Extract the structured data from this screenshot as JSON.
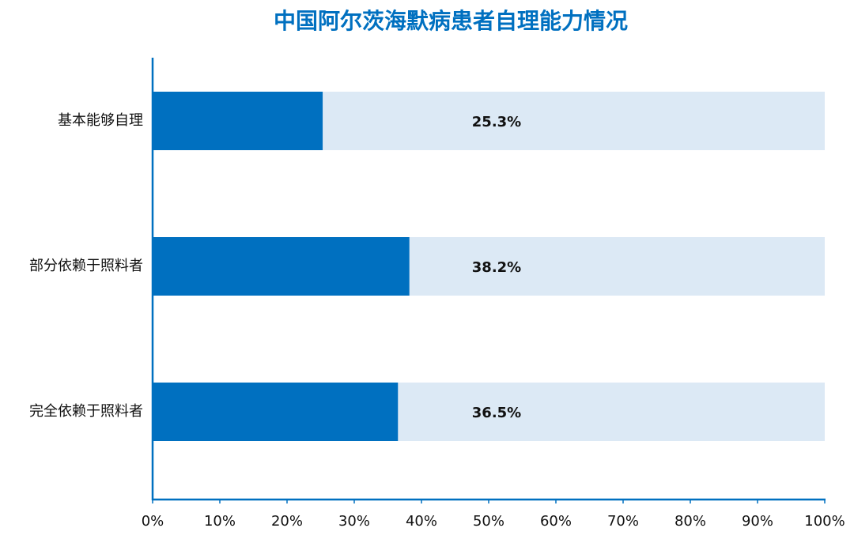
{
  "chart_data": {
    "type": "bar",
    "orientation": "horizontal",
    "title": "中国阿尔茨海默病患者自理能力情况",
    "categories": [
      "基本能够自理",
      "部分依赖于照料者",
      "完全依赖于照料者"
    ],
    "values": [
      25.3,
      38.2,
      36.5
    ],
    "value_labels": [
      "25.3%",
      "38.2%",
      "36.5%"
    ],
    "color": "#0070c0",
    "track_color": "#dce9f5",
    "xlim": [
      0,
      100
    ],
    "xticks": [
      {
        "value": 0,
        "label": "0%"
      },
      {
        "value": 10,
        "label": "10%"
      },
      {
        "value": 20,
        "label": "20%"
      },
      {
        "value": 30,
        "label": "30%"
      },
      {
        "value": 40,
        "label": "40%"
      },
      {
        "value": 50,
        "label": "50%"
      },
      {
        "value": 60,
        "label": "60%"
      },
      {
        "value": 70,
        "label": "70%"
      },
      {
        "value": 80,
        "label": "80%"
      },
      {
        "value": 90,
        "label": "90%"
      },
      {
        "value": 100,
        "label": "100%"
      }
    ],
    "grid": false
  }
}
